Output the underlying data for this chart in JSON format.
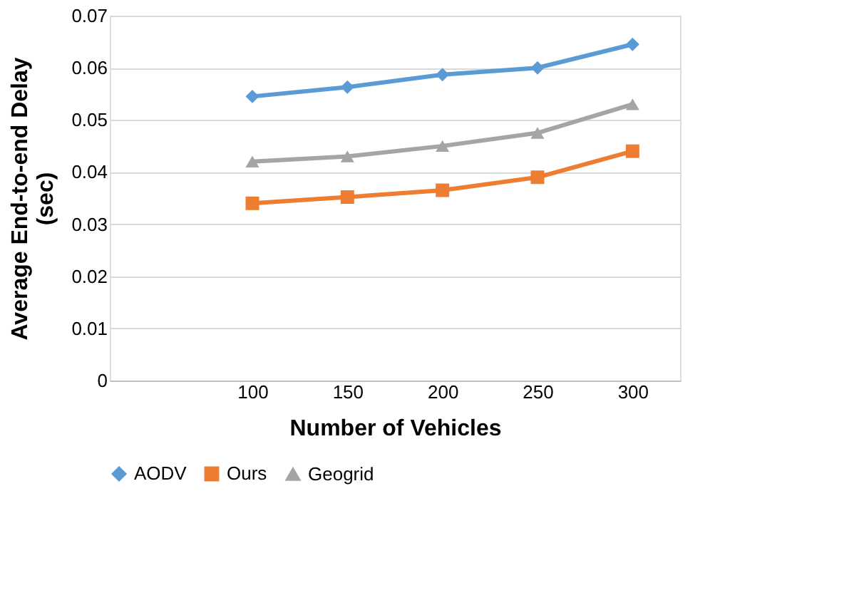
{
  "chart_data": {
    "type": "line",
    "xlabel": "Number of Vehicles",
    "ylabel": "Average End-to-end Delay (sec)",
    "categories": [
      null,
      "100",
      "150",
      "200",
      "250",
      "300"
    ],
    "series": [
      {
        "name": "AODV",
        "color": "#5b9bd5",
        "marker": "diamond",
        "values": [
          null,
          0.0545,
          0.0563,
          0.0587,
          0.06,
          0.0645
        ]
      },
      {
        "name": "Ours",
        "color": "#ed7d31",
        "marker": "square",
        "values": [
          null,
          0.034,
          0.0352,
          0.0365,
          0.039,
          0.044
        ]
      },
      {
        "name": "Geogrid",
        "color": "#a5a5a5",
        "marker": "triangle",
        "values": [
          null,
          0.042,
          0.043,
          0.045,
          0.0475,
          0.053
        ]
      }
    ],
    "ylim": [
      0,
      0.07
    ],
    "yticks": [
      0,
      0.01,
      0.02,
      0.03,
      0.04,
      0.05,
      0.06,
      0.07
    ],
    "grid": "y",
    "legend": "bottom"
  }
}
